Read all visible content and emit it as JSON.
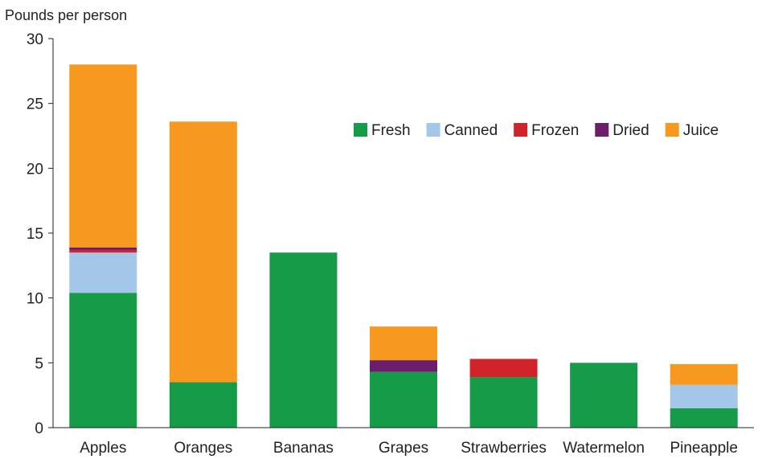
{
  "chart_data": {
    "type": "bar",
    "stacked": true,
    "title": "",
    "xlabel": "",
    "ylabel": "Pounds per person",
    "ylim": [
      0,
      30
    ],
    "yticks": [
      0,
      5,
      10,
      15,
      20,
      25,
      30
    ],
    "grid": false,
    "legend_placement": "top-right",
    "categories": [
      "Apples",
      "Oranges",
      "Bananas",
      "Grapes",
      "Strawberries",
      "Watermelon",
      "Pineapple"
    ],
    "series": [
      {
        "name": "Fresh",
        "color": "#169b48",
        "values": [
          10.4,
          3.5,
          13.5,
          4.3,
          3.9,
          5.0,
          1.5
        ]
      },
      {
        "name": "Canned",
        "color": "#a4c6e8",
        "values": [
          3.1,
          0.0,
          0.0,
          0.0,
          0.0,
          0.0,
          1.8
        ]
      },
      {
        "name": "Frozen",
        "color": "#d3232a",
        "values": [
          0.2,
          0.0,
          0.0,
          0.0,
          1.4,
          0.0,
          0.0
        ]
      },
      {
        "name": "Dried",
        "color": "#6b1f6b",
        "values": [
          0.2,
          0.0,
          0.0,
          0.9,
          0.0,
          0.0,
          0.0
        ]
      },
      {
        "name": "Juice",
        "color": "#f7991f",
        "values": [
          14.1,
          20.1,
          0.0,
          2.6,
          0.0,
          0.0,
          1.6
        ]
      }
    ]
  }
}
